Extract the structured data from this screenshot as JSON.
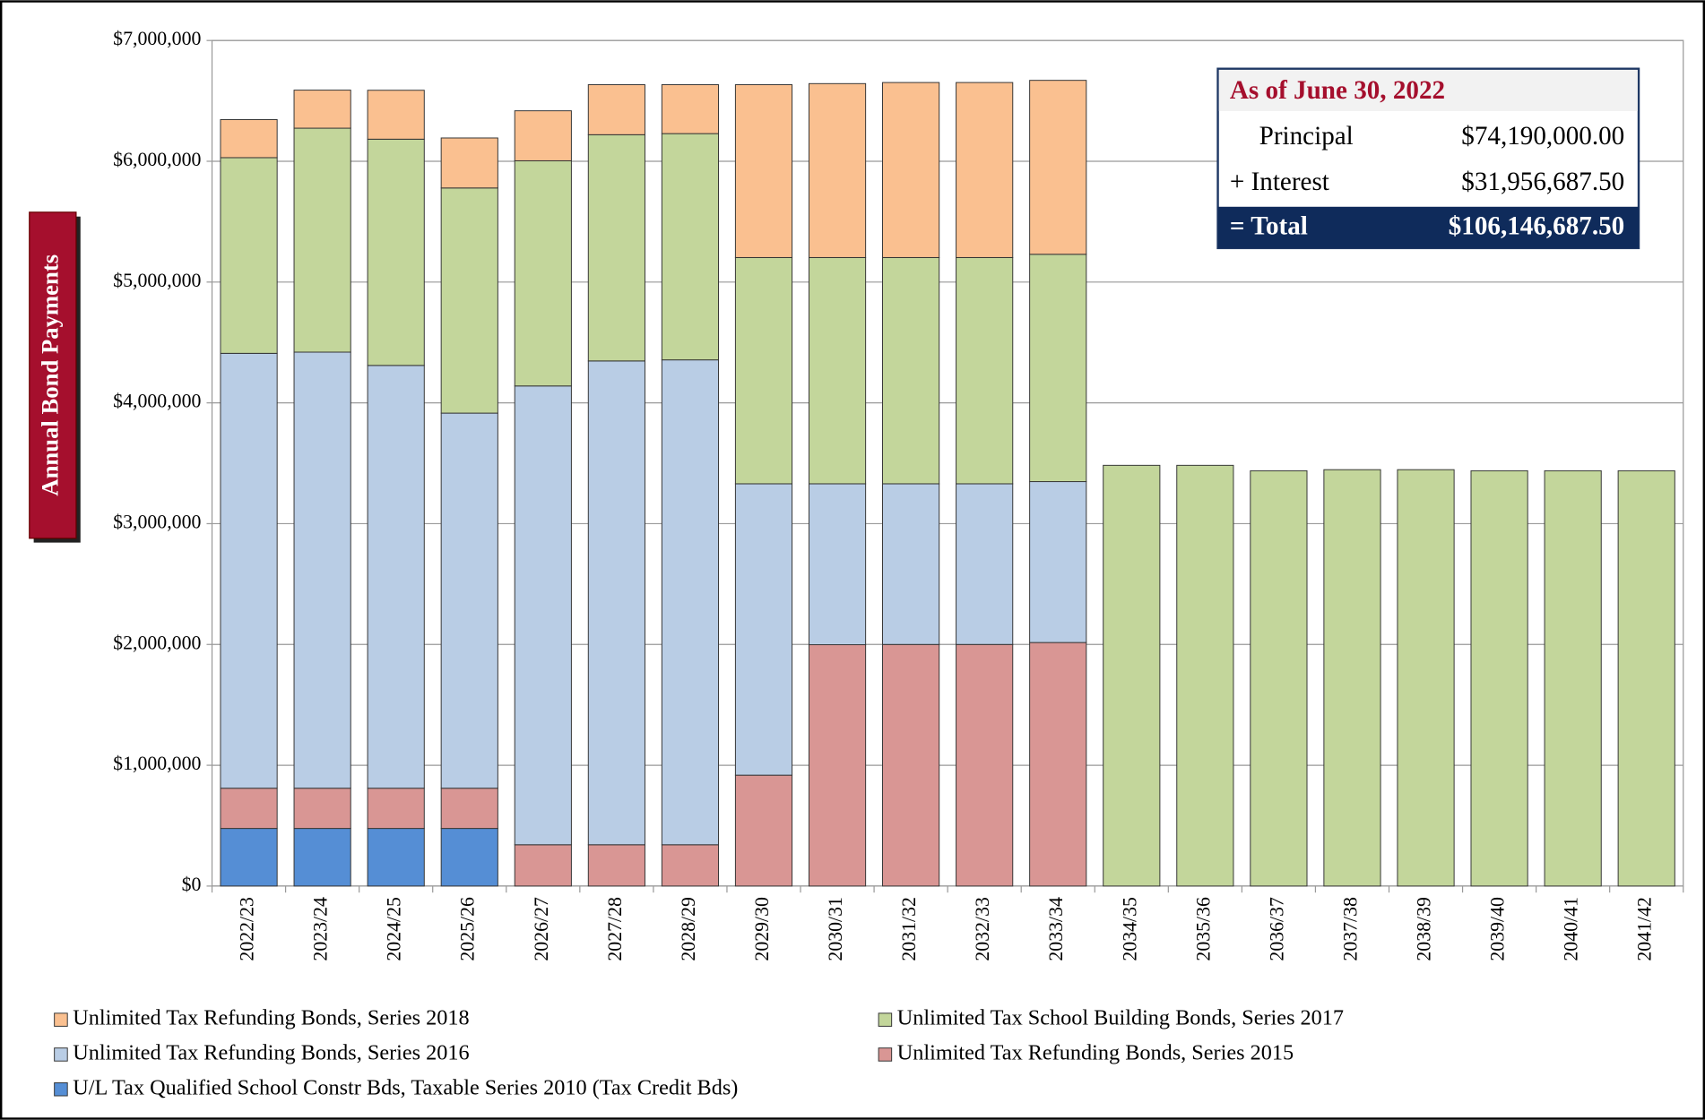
{
  "chart_data": {
    "type": "stacked_bar",
    "y_label": "Annual Bond Payments",
    "categories": [
      "2022/23",
      "2023/24",
      "2024/25",
      "2025/26",
      "2026/27",
      "2027/28",
      "2028/29",
      "2029/30",
      "2030/31",
      "2031/32",
      "2032/33",
      "2033/34",
      "2034/35",
      "2035/36",
      "2036/37",
      "2037/38",
      "2038/39",
      "2039/40",
      "2040/41",
      "2041/42"
    ],
    "series": [
      {
        "name": "Unlimited Tax Refunding Bonds, Series 2018",
        "color": "#fac090",
        "values": [
          315000,
          315000,
          405000,
          414000,
          414000,
          414000,
          405000,
          1431000,
          1440000,
          1449000,
          1449000,
          1440000,
          null,
          null,
          null,
          null,
          null,
          null,
          null,
          null
        ]
      },
      {
        "name": "Unlimited Tax School Building Bonds, Series 2017",
        "color": "#c3d69b",
        "values": [
          1620000,
          1854000,
          1873000,
          1864000,
          1864000,
          1873000,
          1873000,
          1873000,
          1873000,
          1873000,
          1873000,
          1882000,
          3483000,
          3483000,
          3438000,
          3447000,
          3447000,
          3438000,
          3438000,
          3438000
        ]
      },
      {
        "name": "Unlimited Tax Refunding Bonds, Series 2016",
        "color": "#b9cde5",
        "values": [
          3600000,
          3610000,
          3500000,
          3105000,
          3798000,
          4005000,
          4014000,
          2412000,
          1332000,
          1330000,
          1330000,
          1332000,
          null,
          null,
          null,
          null,
          null,
          null,
          null,
          null
        ]
      },
      {
        "name": "Unlimited Tax Refunding Bonds, Series 2015",
        "color": "#d99694",
        "values": [
          333000,
          333000,
          333000,
          333000,
          342000,
          342000,
          342000,
          918000,
          1998000,
          2000000,
          2000000,
          2016000,
          null,
          null,
          null,
          null,
          null,
          null,
          null,
          null
        ]
      },
      {
        "name": "U/L Tax Qualified School Constr Bds, Taxable Series 2010 (Tax Credit Bds)",
        "color": "#558ed5",
        "values": [
          477000,
          477000,
          477000,
          477000,
          null,
          null,
          null,
          null,
          null,
          null,
          null,
          null,
          null,
          null,
          null,
          null,
          null,
          null,
          null,
          null
        ]
      }
    ],
    "ylim": [
      0,
      7000000
    ],
    "yticks": [
      {
        "value": 0,
        "label": "$0"
      },
      {
        "value": 1000000,
        "label": "$1,000,000"
      },
      {
        "value": 2000000,
        "label": "$2,000,000"
      },
      {
        "value": 3000000,
        "label": "$3,000,000"
      },
      {
        "value": 4000000,
        "label": "$4,000,000"
      },
      {
        "value": 5000000,
        "label": "$5,000,000"
      },
      {
        "value": 6000000,
        "label": "$6,000,000"
      },
      {
        "value": 7000000,
        "label": "$7,000,000"
      }
    ],
    "grid": true
  },
  "info_box": {
    "title": "As of June 30, 2022",
    "rows": [
      {
        "label": "Principal",
        "value": "$74,190,000.00"
      },
      {
        "label": "+ Interest",
        "value": "$31,956,687.50"
      }
    ],
    "total": {
      "label": "= Total",
      "value": "$106,146,687.50"
    }
  }
}
